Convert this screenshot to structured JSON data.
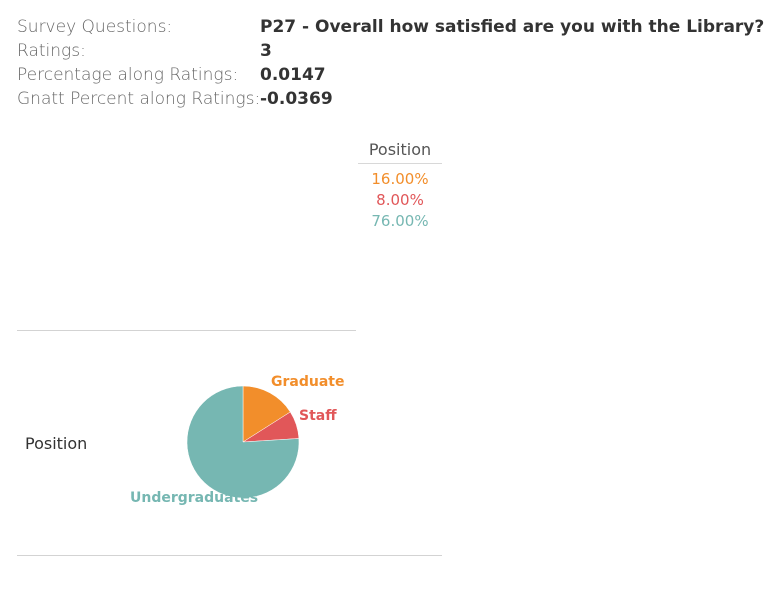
{
  "tooltip": {
    "survey_label": "Survey Questions:",
    "survey_value": "P27 - Overall how satisfied are you with the Library?",
    "ratings_label": "Ratings:",
    "ratings_value": "3",
    "pct_label": "Percentage along Ratings:",
    "pct_value": "0.0147",
    "gnatt_label": "Gnatt Percent along Ratings:",
    "gnatt_value": "-0.0369"
  },
  "table": {
    "column_header": "Position",
    "row_header": "Position",
    "percentages": [
      {
        "text": "16.00%",
        "color": "#f28e2b"
      },
      {
        "text": "8.00%",
        "color": "#e15759"
      },
      {
        "text": "76.00%",
        "color": "#76b7b2"
      }
    ]
  },
  "chart_data": {
    "type": "pie",
    "title": "",
    "categories": [
      "Graduate",
      "Staff",
      "Undergraduates"
    ],
    "values": [
      16,
      8,
      76
    ],
    "unit": "%",
    "colors": [
      "#f28e2b",
      "#e15759",
      "#76b7b2"
    ]
  }
}
